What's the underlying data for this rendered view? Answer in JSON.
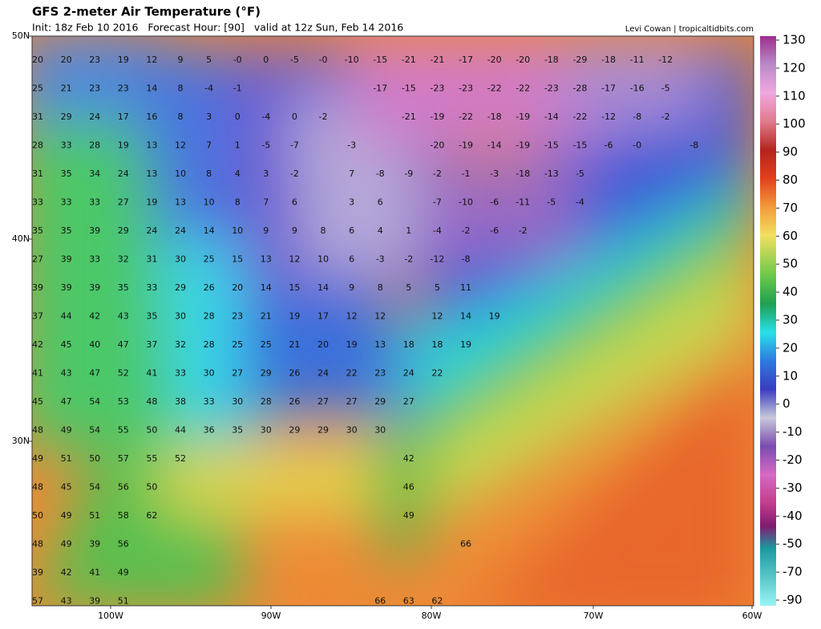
{
  "header": {
    "title": "GFS 2-meter Air Temperature (°F)",
    "subtitle": "Init: 18z Feb 10 2016   Forecast Hour: [90]   valid at 12z Sun, Feb 14 2016",
    "credit": "Levi Cowan | tropicaltidbits.com"
  },
  "latitude_labels": [
    "50N",
    "40N",
    "30N"
  ],
  "longitude_labels": [
    "100W",
    "90W",
    "80W",
    "70W",
    "60W"
  ],
  "colorbar": {
    "ticks": [
      130,
      120,
      110,
      100,
      90,
      80,
      70,
      60,
      50,
      40,
      30,
      20,
      10,
      0,
      -10,
      -20,
      -30,
      -40,
      -50,
      -70,
      -90
    ]
  },
  "map_labels": {
    "rows": [
      [
        20,
        20,
        23,
        19,
        12,
        9,
        5,
        "-0",
        0,
        -5,
        "-0",
        -10,
        -15,
        -21,
        -21,
        -17,
        -20,
        -20,
        -18,
        -29,
        -18,
        -11,
        -12
      ],
      [
        25,
        21,
        23,
        23,
        14,
        8,
        -4,
        -1,
        null,
        null,
        null,
        null,
        -17,
        -15,
        -23,
        -23,
        -22,
        -22,
        -23,
        -28,
        -17,
        -16,
        -5
      ],
      [
        31,
        29,
        24,
        17,
        16,
        8,
        3,
        0,
        -4,
        0,
        -2,
        null,
        null,
        -21,
        -19,
        -22,
        -18,
        -19,
        -14,
        -22,
        -12,
        -8,
        -2
      ],
      [
        28,
        33,
        28,
        19,
        13,
        12,
        7,
        1,
        -5,
        -7,
        null,
        -3,
        null,
        null,
        -20,
        -19,
        -14,
        -19,
        -15,
        -15,
        -6,
        "-0",
        null,
        -8
      ],
      [
        31,
        35,
        34,
        24,
        13,
        10,
        8,
        4,
        3,
        -2,
        null,
        7,
        -8,
        -9,
        -2,
        -1,
        -3,
        -18,
        -13,
        -5
      ],
      [
        33,
        33,
        33,
        27,
        19,
        13,
        10,
        8,
        7,
        6,
        null,
        3,
        6,
        null,
        -7,
        -10,
        -6,
        -11,
        -5,
        -4
      ],
      [
        35,
        35,
        39,
        29,
        24,
        24,
        14,
        10,
        9,
        9,
        8,
        6,
        4,
        1,
        -4,
        -2,
        -6,
        -2
      ],
      [
        27,
        39,
        33,
        32,
        31,
        30,
        25,
        15,
        13,
        12,
        10,
        6,
        -3,
        -2,
        -12,
        -8
      ],
      [
        39,
        39,
        39,
        35,
        33,
        29,
        26,
        20,
        14,
        15,
        14,
        9,
        8,
        5,
        5,
        11
      ],
      [
        37,
        44,
        42,
        43,
        35,
        30,
        28,
        23,
        21,
        19,
        17,
        12,
        12,
        null,
        12,
        14,
        19
      ],
      [
        42,
        45,
        40,
        47,
        37,
        32,
        28,
        25,
        25,
        21,
        20,
        19,
        13,
        18,
        18,
        19
      ],
      [
        41,
        43,
        47,
        52,
        41,
        33,
        30,
        27,
        29,
        26,
        24,
        22,
        23,
        24,
        22
      ],
      [
        45,
        47,
        54,
        53,
        48,
        38,
        33,
        30,
        28,
        26,
        27,
        27,
        29,
        27
      ],
      [
        48,
        49,
        54,
        55,
        50,
        44,
        36,
        35,
        30,
        29,
        29,
        30,
        30
      ],
      [
        49,
        51,
        50,
        57,
        55,
        52,
        null,
        null,
        null,
        null,
        null,
        null,
        null,
        42
      ],
      [
        48,
        45,
        54,
        56,
        50,
        null,
        null,
        null,
        null,
        null,
        null,
        null,
        null,
        46
      ],
      [
        50,
        49,
        51,
        58,
        62,
        null,
        null,
        null,
        null,
        null,
        null,
        null,
        null,
        49
      ],
      [
        48,
        49,
        39,
        56,
        null,
        null,
        null,
        null,
        null,
        null,
        null,
        null,
        null,
        null,
        null,
        66
      ],
      [
        39,
        42,
        41,
        49
      ],
      [
        57,
        43,
        39,
        51,
        null,
        null,
        null,
        null,
        null,
        null,
        null,
        null,
        66,
        63,
        62
      ]
    ]
  }
}
